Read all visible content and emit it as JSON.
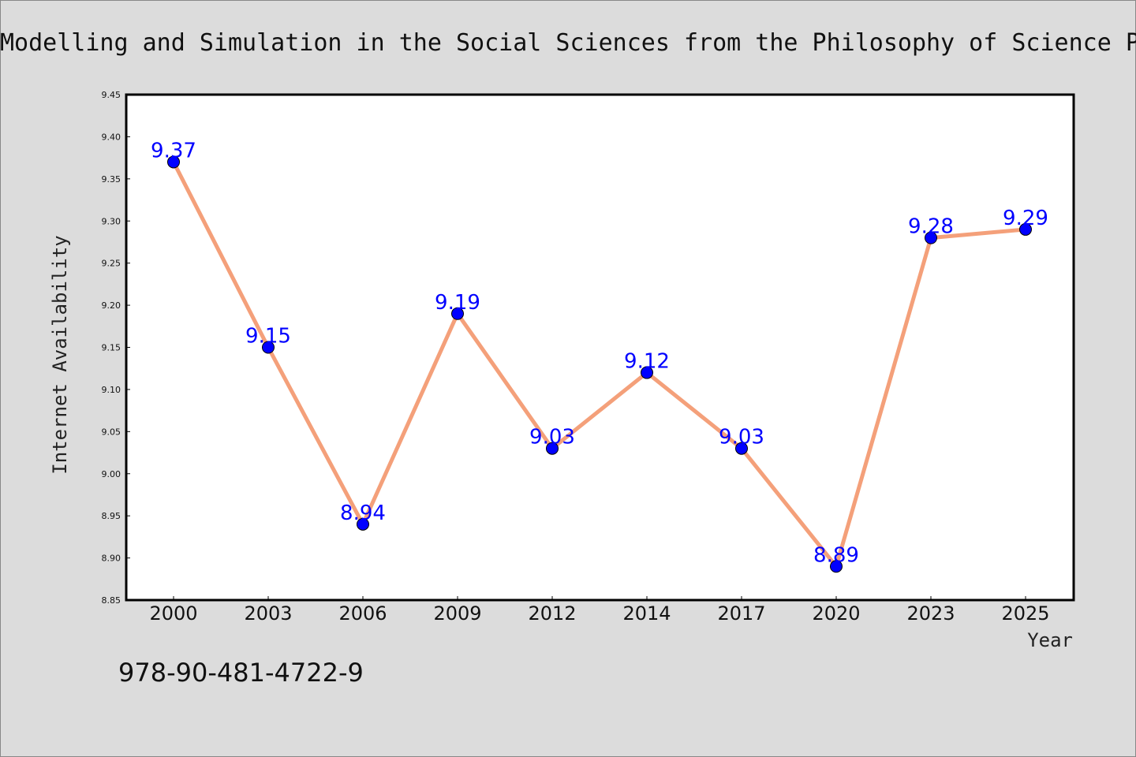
{
  "chart_data": {
    "type": "line",
    "title": "Modelling and Simulation in the Social Sciences from the Philosophy of Science Point of View",
    "xlabel": "Year",
    "ylabel": "Internet Availability",
    "categories": [
      "2000",
      "2003",
      "2006",
      "2009",
      "2012",
      "2014",
      "2017",
      "2020",
      "2023",
      "2025"
    ],
    "series": [
      {
        "values": [
          9.37,
          9.15,
          8.94,
          9.19,
          9.03,
          9.12,
          9.03,
          8.89,
          9.28,
          9.29
        ],
        "labels": [
          "9.37",
          "9.15",
          "8.94",
          "9.19",
          "9.03",
          "9.12",
          "9.03",
          "8.89",
          "9.28",
          "9.29"
        ],
        "line_color": "#f4a07a",
        "marker_color": "#0000ff"
      }
    ],
    "ylim": [
      8.85,
      9.45
    ],
    "yticks": [
      "8.85",
      "8.90",
      "8.95",
      "9.00",
      "9.05",
      "9.10",
      "9.15",
      "9.20",
      "9.25",
      "9.30",
      "9.35",
      "9.40",
      "9.45"
    ],
    "grid": false,
    "legend": "none"
  },
  "footnote": "978-90-481-4722-9",
  "colors": {
    "background": "#dcdcdc",
    "plot_background": "#ffffff",
    "line": "#f4a07a",
    "marker": "#0000ff",
    "data_label": "#0000ff"
  }
}
